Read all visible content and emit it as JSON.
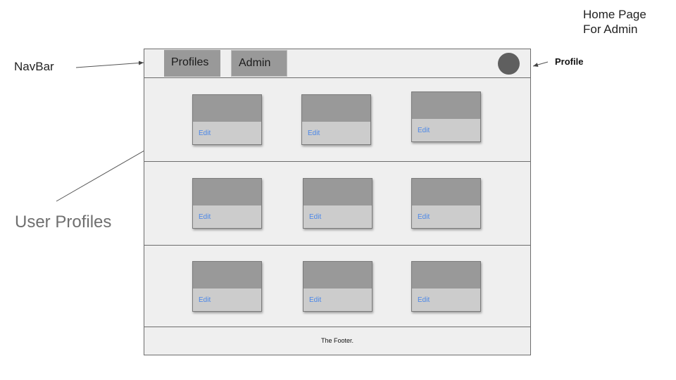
{
  "title": "Home Page\nFor Admin",
  "annotations": {
    "navbar": "NavBar",
    "profile": "Profile",
    "user_profiles": "User Profiles"
  },
  "navbar": {
    "tabs": [
      {
        "label": "Profiles"
      },
      {
        "label": "Admin"
      }
    ]
  },
  "rows": [
    {
      "cards": [
        {
          "action": "Edit"
        },
        {
          "action": "Edit"
        },
        {
          "action": "Edit"
        }
      ]
    },
    {
      "cards": [
        {
          "action": "Edit"
        },
        {
          "action": "Edit"
        },
        {
          "action": "Edit"
        }
      ]
    },
    {
      "cards": [
        {
          "action": "Edit"
        },
        {
          "action": "Edit"
        },
        {
          "action": "Edit"
        }
      ]
    }
  ],
  "footer": {
    "text": "The Footer."
  },
  "colors": {
    "frame_bg": "#efefef",
    "tab_bg": "#999999",
    "avatar": "#5f5f5f",
    "edit_link": "#4a86e8"
  }
}
